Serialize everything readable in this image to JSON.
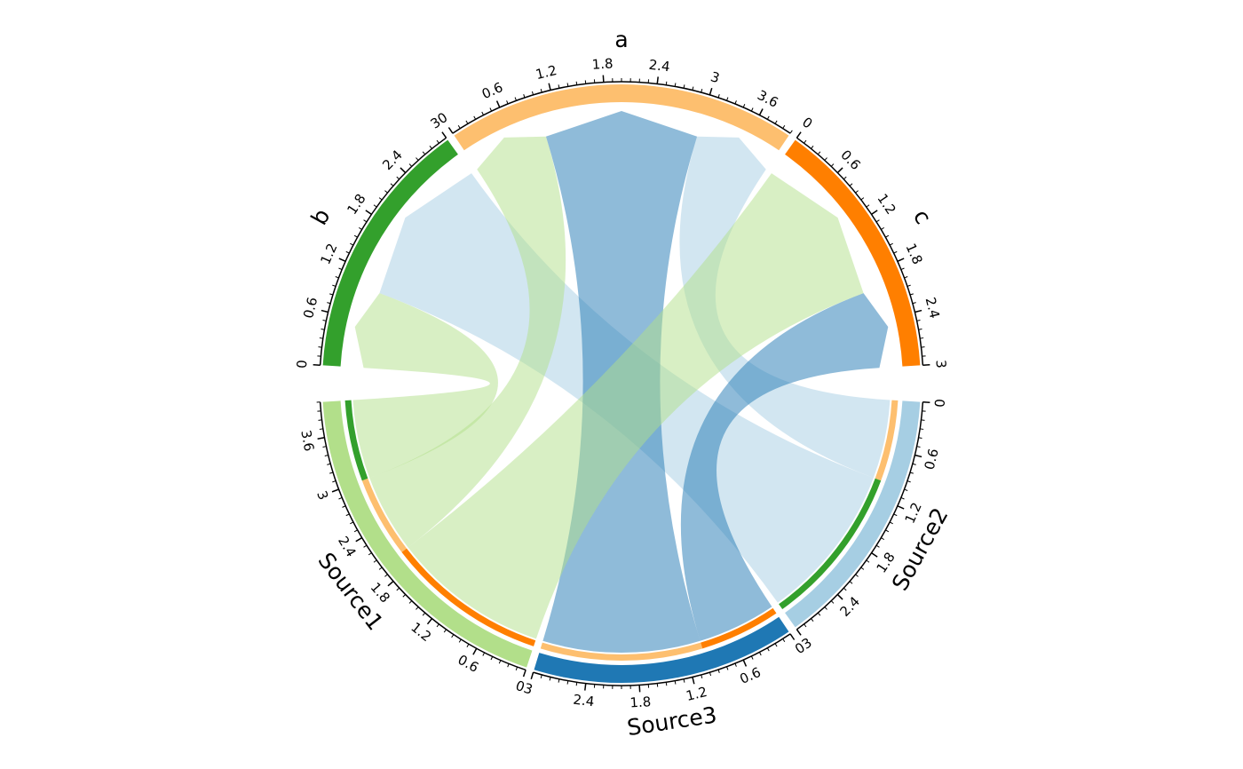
{
  "chart_data": {
    "type": "chord",
    "rows": [
      "Source1",
      "Source2",
      "Source3"
    ],
    "cols": [
      "a",
      "b",
      "c"
    ],
    "values": [
      [
        1,
        1,
        2
      ],
      [
        1,
        2,
        0
      ],
      [
        2,
        0,
        1
      ]
    ],
    "row_colors": [
      "#b2df8a",
      "#a6cee3",
      "#1f78b4"
    ],
    "col_colors": [
      "#fdbf6f",
      "#33a02c",
      "#ff7f00"
    ],
    "row_ticks": [
      [
        0,
        0.6,
        1.2,
        1.8,
        2.4,
        3,
        3.6
      ],
      [
        0,
        0.6,
        1.2,
        1.8,
        2.4,
        3
      ],
      [
        0,
        0.6,
        1.2,
        1.8,
        2.4,
        3
      ]
    ],
    "col_ticks": [
      [
        0,
        0.6,
        1.2,
        1.8,
        2.4,
        3,
        3.6
      ],
      [
        0,
        0.6,
        1.2,
        1.8,
        2.4,
        3
      ],
      [
        0,
        0.6,
        1.2,
        1.8,
        2.4,
        3
      ]
    ],
    "minor_tick_interval": 0.1,
    "link_opacity": 0.5
  }
}
